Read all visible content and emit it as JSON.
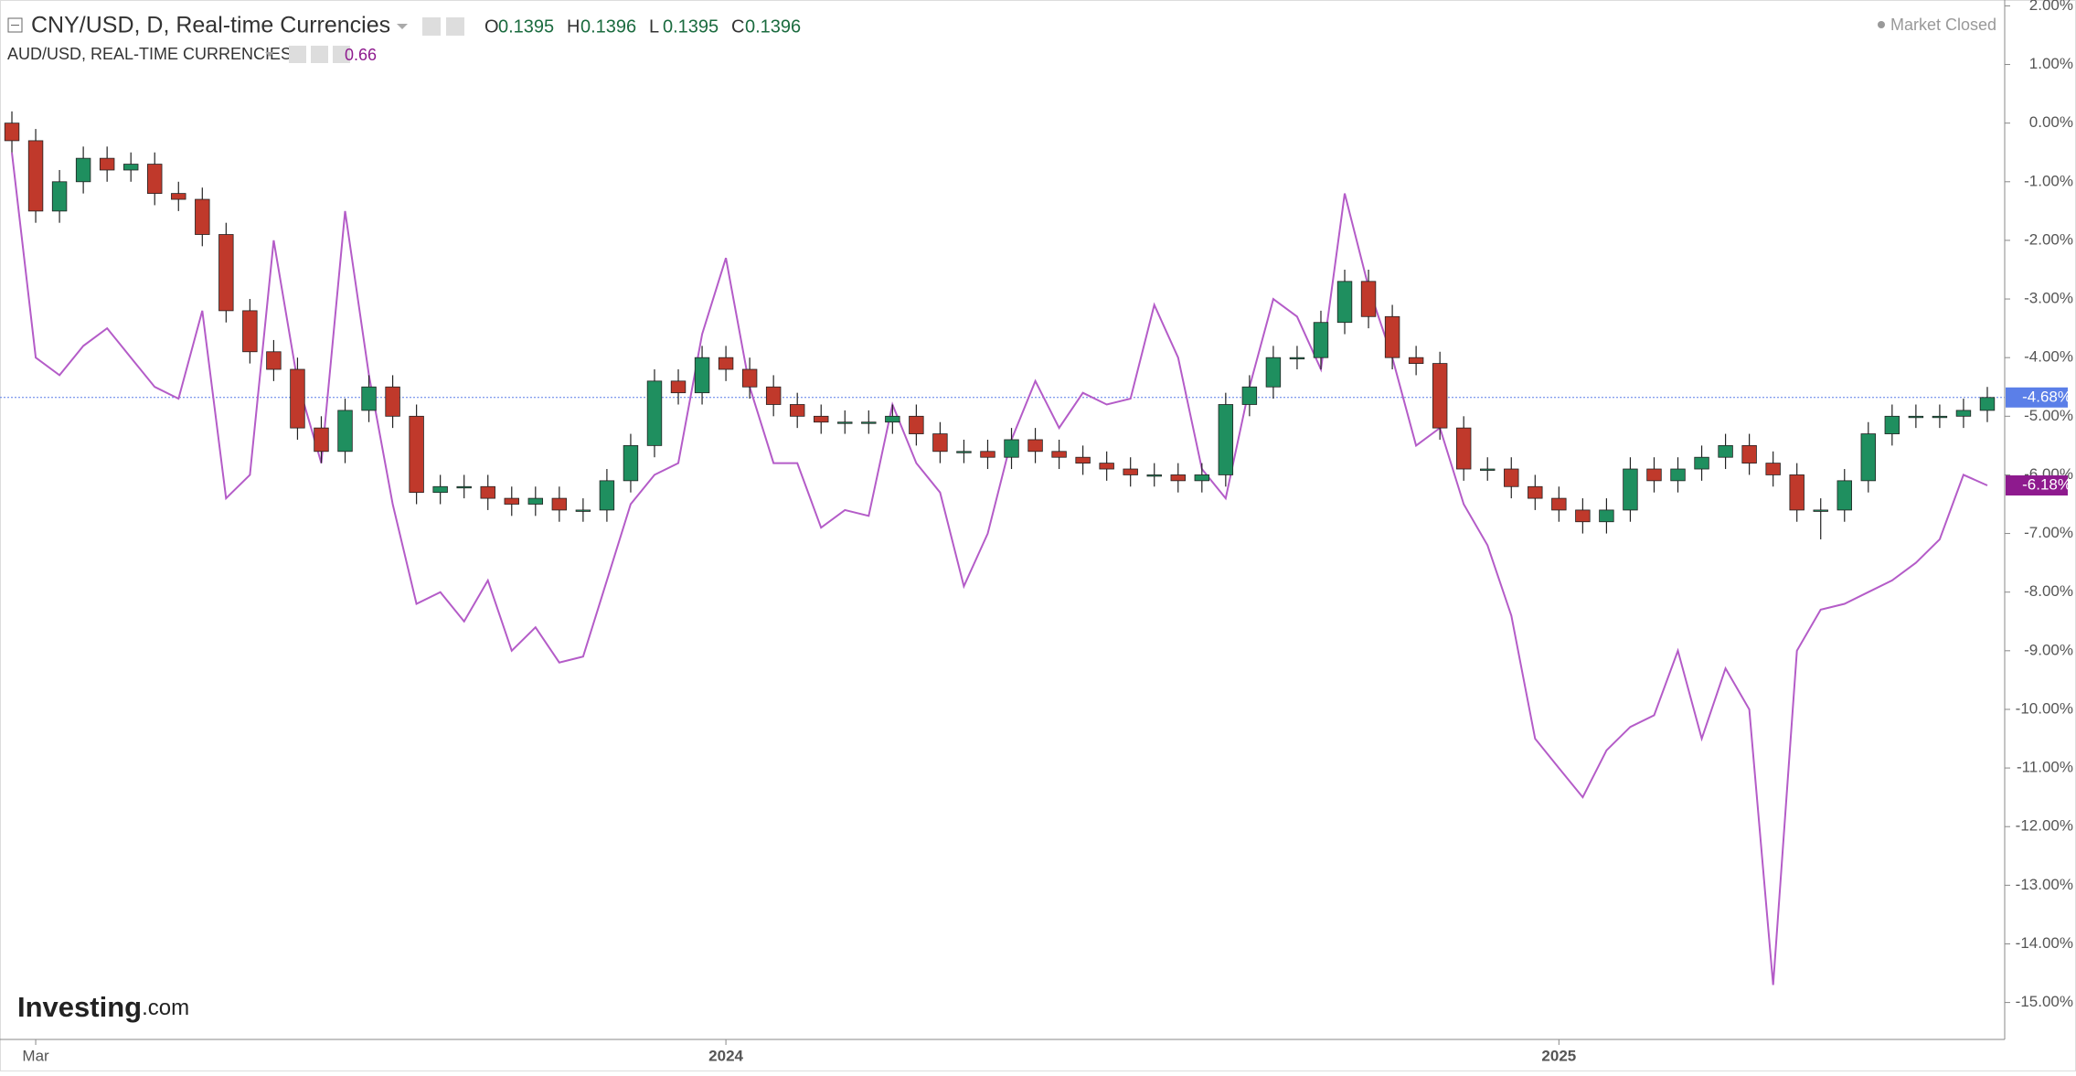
{
  "chart_data": {
    "type": "candlestick",
    "title": "CNY/USD, D, Real-time Currencies",
    "ohlc": [
      {
        "label": "O",
        "value": 0.1395
      },
      {
        "label": "H",
        "value": 0.1396
      },
      {
        "label": "L",
        "value": 0.1395
      },
      {
        "label": "C",
        "value": 0.1396
      }
    ],
    "status": "Market Closed",
    "watermark": {
      "brand": "Investing",
      "domain": ".com"
    },
    "categories": [
      null,
      "Mar",
      null,
      null,
      null,
      null,
      null,
      null,
      null,
      null,
      null,
      null,
      null,
      null,
      null,
      null,
      null,
      null,
      null,
      null,
      null,
      null,
      null,
      null,
      null,
      null,
      null,
      null,
      null,
      null,
      "2024",
      null,
      null,
      null,
      null,
      null,
      null,
      null,
      null,
      null,
      null,
      null,
      null,
      null,
      null,
      null,
      null,
      null,
      null,
      null,
      null,
      null,
      null,
      null,
      null,
      null,
      null,
      null,
      null,
      null,
      null,
      null,
      null,
      null,
      null,
      "2025",
      null,
      null,
      null,
      null,
      null,
      null,
      null,
      null,
      null,
      null,
      null,
      null,
      null,
      null,
      null,
      null,
      null,
      null
    ],
    "ylim": [
      -15.63,
      2.1
    ],
    "yticks": [
      {
        "value": 2,
        "label": "2.00%"
      },
      {
        "value": 1,
        "label": "1.00%"
      },
      {
        "value": 0,
        "label": "0.00%"
      },
      {
        "value": -1,
        "label": "-1.00%"
      },
      {
        "value": -2,
        "label": "-2.00%"
      },
      {
        "value": -3,
        "label": "-3.00%"
      },
      {
        "value": -4,
        "label": "-4.00%"
      },
      {
        "value": -5,
        "label": "-5.00%"
      },
      {
        "value": -6,
        "label": "-6.00%"
      },
      {
        "value": -7,
        "label": "-7.00%"
      },
      {
        "value": -8,
        "label": "-8.00%"
      },
      {
        "value": -9,
        "label": "-9.00%"
      },
      {
        "value": -10,
        "label": "-10.00%"
      },
      {
        "value": -11,
        "label": "-11.00%"
      },
      {
        "value": -12,
        "label": "-12.00%"
      },
      {
        "value": -13,
        "label": "-13.00%"
      },
      {
        "value": -14,
        "label": "-14.00%"
      },
      {
        "value": -15,
        "label": "-15.00%"
      }
    ],
    "grid": false,
    "candles": {
      "name": "CNY/USD",
      "up_color": "#1f8f5f",
      "down_color": "#c0392b",
      "badge_color": "#5b7fe8",
      "last_label": "-4.68%",
      "open": [
        0.0,
        -0.3,
        -1.5,
        -1.0,
        -0.6,
        -0.8,
        -0.7,
        -1.2,
        -1.3,
        -1.9,
        -3.2,
        -3.9,
        -4.2,
        -5.2,
        -5.6,
        -4.9,
        -4.5,
        -5.0,
        -6.3,
        -6.2,
        -6.2,
        -6.4,
        -6.5,
        -6.4,
        -6.6,
        -6.6,
        -6.1,
        -5.5,
        -4.4,
        -4.6,
        -4.0,
        -4.2,
        -4.5,
        -4.8,
        -5.0,
        -5.1,
        -5.1,
        -5.1,
        -5.0,
        -5.3,
        -5.6,
        -5.6,
        -5.7,
        -5.4,
        -5.6,
        -5.7,
        -5.8,
        -5.9,
        -6.0,
        -6.0,
        -6.1,
        -6.0,
        -4.8,
        -4.5,
        -4.0,
        -4.0,
        -3.4,
        -2.7,
        -3.3,
        -4.0,
        -4.1,
        -5.2,
        -5.9,
        -5.9,
        -6.2,
        -6.4,
        -6.6,
        -6.8,
        -6.6,
        -5.9,
        -6.1,
        -5.9,
        -5.7,
        -5.5,
        -5.8,
        -6.0,
        -6.6,
        -6.6,
        -6.1,
        -5.3,
        -5.0,
        -5.0,
        -5.0,
        -4.9
      ],
      "high": [
        0.2,
        -0.1,
        -0.8,
        -0.4,
        -0.4,
        -0.5,
        -0.5,
        -1.0,
        -1.1,
        -1.7,
        -3.0,
        -3.7,
        -4.0,
        -5.0,
        -4.7,
        -4.3,
        -4.3,
        -4.8,
        -6.0,
        -6.0,
        -6.0,
        -6.2,
        -6.2,
        -6.2,
        -6.4,
        -5.9,
        -5.3,
        -4.2,
        -4.2,
        -3.8,
        -3.8,
        -4.0,
        -4.3,
        -4.6,
        -4.8,
        -4.9,
        -4.9,
        -4.8,
        -4.8,
        -5.1,
        -5.4,
        -5.4,
        -5.2,
        -5.2,
        -5.4,
        -5.5,
        -5.6,
        -5.7,
        -5.8,
        -5.8,
        -5.8,
        -4.6,
        -4.3,
        -3.8,
        -3.8,
        -3.2,
        -2.5,
        -2.5,
        -3.1,
        -3.8,
        -3.9,
        -5.0,
        -5.7,
        -5.7,
        -6.0,
        -6.2,
        -6.4,
        -6.4,
        -5.7,
        -5.7,
        -5.7,
        -5.5,
        -5.3,
        -5.3,
        -5.6,
        -5.8,
        -6.4,
        -5.9,
        -5.1,
        -4.8,
        -4.8,
        -4.8,
        -4.7,
        -4.5
      ],
      "low": [
        -0.5,
        -1.7,
        -1.7,
        -1.2,
        -1.0,
        -1.0,
        -1.4,
        -1.5,
        -2.1,
        -3.4,
        -4.1,
        -4.4,
        -5.4,
        -5.8,
        -5.8,
        -5.1,
        -5.2,
        -6.5,
        -6.5,
        -6.4,
        -6.6,
        -6.7,
        -6.7,
        -6.8,
        -6.8,
        -6.8,
        -6.3,
        -5.7,
        -4.8,
        -4.8,
        -4.4,
        -4.7,
        -5.0,
        -5.2,
        -5.3,
        -5.3,
        -5.3,
        -5.3,
        -5.5,
        -5.8,
        -5.8,
        -5.9,
        -5.9,
        -5.8,
        -5.9,
        -6.0,
        -6.1,
        -6.2,
        -6.2,
        -6.3,
        -6.3,
        -6.2,
        -5.0,
        -4.7,
        -4.2,
        -4.2,
        -3.6,
        -3.5,
        -4.2,
        -4.3,
        -5.4,
        -6.1,
        -6.1,
        -6.4,
        -6.6,
        -6.8,
        -7.0,
        -7.0,
        -6.8,
        -6.3,
        -6.3,
        -6.1,
        -5.9,
        -6.0,
        -6.2,
        -6.8,
        -7.1,
        -6.8,
        -6.3,
        -5.5,
        -5.2,
        -5.2,
        -5.2,
        -5.1
      ],
      "close": [
        -0.3,
        -1.5,
        -1.0,
        -0.6,
        -0.8,
        -0.7,
        -1.2,
        -1.3,
        -1.9,
        -3.2,
        -3.9,
        -4.2,
        -5.2,
        -5.6,
        -4.9,
        -4.5,
        -5.0,
        -6.3,
        -6.2,
        -6.2,
        -6.4,
        -6.5,
        -6.4,
        -6.6,
        -6.6,
        -6.1,
        -5.5,
        -4.4,
        -4.6,
        -4.0,
        -4.2,
        -4.5,
        -4.8,
        -5.0,
        -5.1,
        -5.1,
        -5.1,
        -5.0,
        -5.3,
        -5.6,
        -5.6,
        -5.7,
        -5.4,
        -5.6,
        -5.7,
        -5.8,
        -5.9,
        -6.0,
        -6.0,
        -6.1,
        -6.0,
        -4.8,
        -4.5,
        -4.0,
        -4.0,
        -3.4,
        -2.7,
        -3.3,
        -4.0,
        -4.1,
        -5.2,
        -5.9,
        -5.9,
        -6.2,
        -6.4,
        -6.6,
        -6.8,
        -6.6,
        -5.9,
        -6.1,
        -5.9,
        -5.7,
        -5.5,
        -5.8,
        -6.0,
        -6.6,
        -6.6,
        -6.1,
        -5.3,
        -5.0,
        -5.0,
        -5.0,
        -4.9,
        -4.68
      ]
    },
    "series": [
      {
        "name": "AUD/USD, REAL-TIME CURRENCIES",
        "last_price": 0.66,
        "color": "#b45cc8",
        "badge_color": "#8e1a8e",
        "last_label": "-6.18%",
        "values": [
          -0.5,
          -4.0,
          -4.3,
          -3.8,
          -3.5,
          -4.0,
          -4.5,
          -4.7,
          -3.2,
          -6.4,
          -6.0,
          -2.0,
          -4.4,
          -5.8,
          -1.5,
          -4.3,
          -6.5,
          -8.2,
          -8.0,
          -8.5,
          -7.8,
          -9.0,
          -8.6,
          -9.2,
          -9.1,
          -7.8,
          -6.5,
          -6.0,
          -5.8,
          -3.6,
          -2.3,
          -4.5,
          -5.8,
          -5.8,
          -6.9,
          -6.6,
          -6.7,
          -4.8,
          -5.8,
          -6.3,
          -7.9,
          -7.0,
          -5.4,
          -4.4,
          -5.2,
          -4.6,
          -4.8,
          -4.7,
          -3.1,
          -4.0,
          -5.9,
          -6.4,
          -4.5,
          -3.0,
          -3.3,
          -4.2,
          -1.2,
          -2.8,
          -4.0,
          -5.5,
          -5.2,
          -6.5,
          -7.2,
          -8.4,
          -10.5,
          -11.0,
          -11.5,
          -10.7,
          -10.3,
          -10.1,
          -9.0,
          -10.5,
          -9.3,
          -10.0,
          -14.7,
          -9.0,
          -8.3,
          -8.2,
          -8.0,
          -7.8,
          -7.5,
          -7.1,
          -6.0,
          -6.18
        ]
      }
    ]
  }
}
